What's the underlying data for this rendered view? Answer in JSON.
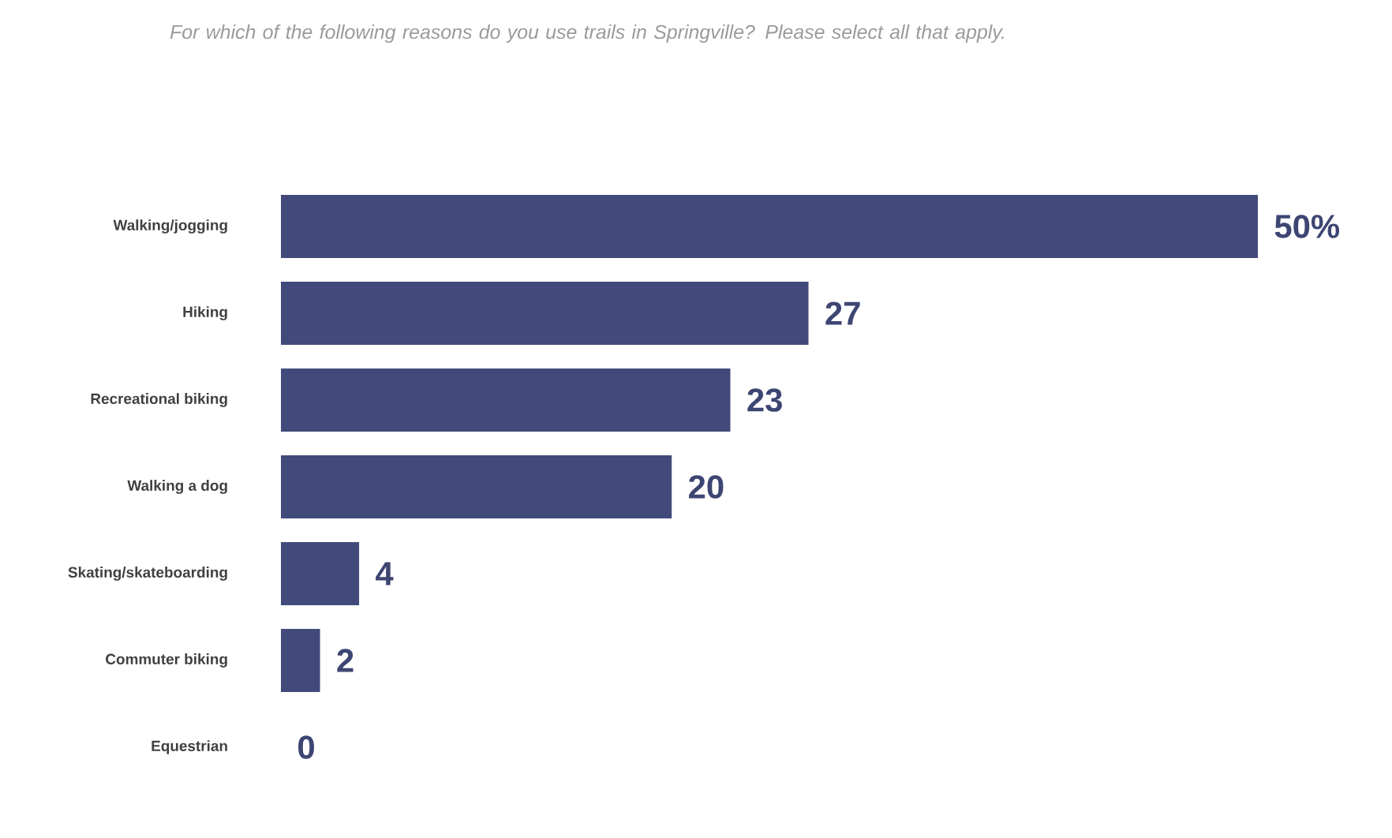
{
  "chart_data": {
    "type": "bar",
    "orientation": "horizontal",
    "title": "*For which of the following reasons do you use trails in Springville? Please select all that apply.*",
    "categories": [
      "Walking/jogging",
      "Hiking",
      "Recreational biking",
      "Walking a dog",
      "Skating/skateboarding",
      "Commuter biking",
      "Equestrian"
    ],
    "values": [
      50,
      27,
      23,
      20,
      4,
      2,
      0
    ],
    "value_labels": [
      "50%",
      "27",
      "23",
      "20",
      "4",
      "2",
      "0"
    ],
    "color": "#414a7a"
  }
}
